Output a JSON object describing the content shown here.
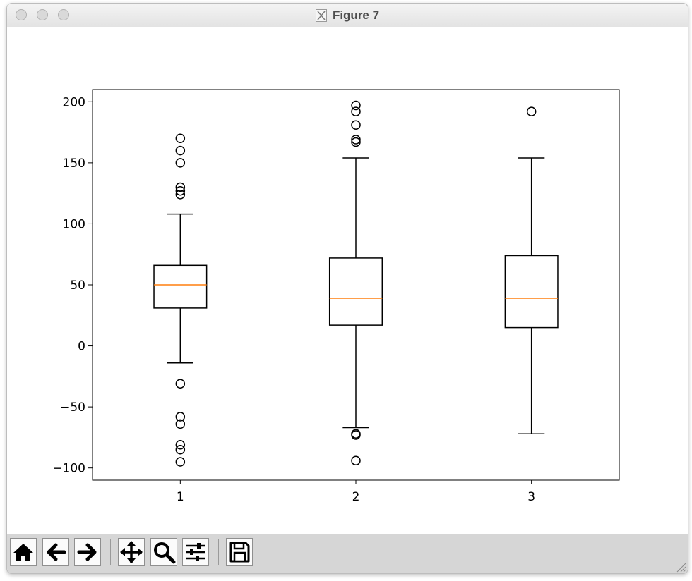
{
  "window": {
    "title": "Figure 7"
  },
  "toolbar": {
    "buttons": [
      {
        "name": "home",
        "icon": "home-icon"
      },
      {
        "name": "back",
        "icon": "arrow-left-icon"
      },
      {
        "name": "forward",
        "icon": "arrow-right-icon"
      },
      {
        "name": "pan",
        "icon": "move-icon"
      },
      {
        "name": "zoom",
        "icon": "magnifier-icon"
      },
      {
        "name": "configure-subplots",
        "icon": "sliders-icon"
      },
      {
        "name": "save",
        "icon": "floppy-disk-icon"
      }
    ]
  },
  "chart_data": {
    "type": "box",
    "title": "",
    "xlabel": "",
    "ylabel": "",
    "ylim": [
      -110,
      210
    ],
    "yticks": [
      -100,
      -50,
      0,
      50,
      100,
      150,
      200
    ],
    "ytick_labels": [
      "−100",
      "−50",
      "0",
      "50",
      "100",
      "150",
      "200"
    ],
    "categories": [
      "1",
      "2",
      "3"
    ],
    "median_color": "#ff7f0e",
    "box_color": "#000000",
    "boxes": [
      {
        "label": "1",
        "whisker_low": -14,
        "q1": 31,
        "median": 50,
        "q3": 66,
        "whisker_high": 108,
        "outliers": [
          170,
          160,
          150,
          130,
          127,
          124,
          -31,
          -58,
          -64,
          -81,
          -85,
          -95
        ]
      },
      {
        "label": "2",
        "whisker_low": -67,
        "q1": 17,
        "median": 39,
        "q3": 72,
        "whisker_high": 154,
        "outliers": [
          197,
          192,
          181,
          169,
          167,
          -72,
          -73,
          -94
        ]
      },
      {
        "label": "3",
        "whisker_low": -72,
        "q1": 15,
        "median": 39,
        "q3": 74,
        "whisker_high": 154,
        "outliers": [
          192
        ]
      }
    ]
  }
}
